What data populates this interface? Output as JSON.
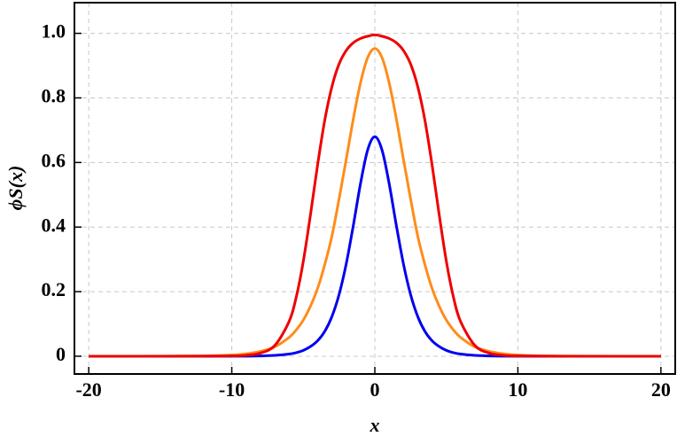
{
  "chart_data": {
    "type": "line",
    "x_label": "x",
    "y_label": "ϕS(x)",
    "x": [
      -20,
      -15,
      -12,
      -10,
      -9,
      -8,
      -7,
      -6,
      -5.5,
      -5,
      -4.5,
      -4,
      -3.5,
      -3,
      -2.5,
      -2,
      -1.5,
      -1,
      -0.5,
      0,
      0.5,
      1,
      1.5,
      2,
      2.5,
      3,
      3.5,
      4,
      4.5,
      5,
      5.5,
      6,
      7,
      8,
      9,
      10,
      12,
      15,
      20
    ],
    "series": [
      {
        "color": "#0000ee",
        "values": [
          0,
          0,
          0,
          0.0001,
          0.0003,
          0.0009,
          0.0025,
          0.0067,
          0.011,
          0.018,
          0.03,
          0.048,
          0.077,
          0.123,
          0.191,
          0.286,
          0.406,
          0.535,
          0.639,
          0.68,
          0.639,
          0.535,
          0.406,
          0.286,
          0.191,
          0.123,
          0.077,
          0.048,
          0.03,
          0.018,
          0.011,
          0.0067,
          0.0025,
          0.0009,
          0.0003,
          0.0001,
          0,
          0,
          0
        ]
      },
      {
        "color": "#ff8c1a",
        "values": [
          0,
          0.0001,
          0.0009,
          0.0037,
          0.0074,
          0.015,
          0.029,
          0.058,
          0.081,
          0.112,
          0.155,
          0.21,
          0.284,
          0.372,
          0.487,
          0.61,
          0.736,
          0.847,
          0.925,
          0.953,
          0.925,
          0.847,
          0.736,
          0.61,
          0.487,
          0.372,
          0.284,
          0.21,
          0.155,
          0.112,
          0.081,
          0.058,
          0.029,
          0.015,
          0.0074,
          0.0037,
          0.0009,
          0.0001,
          0
        ]
      },
      {
        "color": "#ee0000",
        "values": [
          0,
          0,
          0.0001,
          0.0008,
          0.0028,
          0.0097,
          0.033,
          0.107,
          0.182,
          0.294,
          0.438,
          0.593,
          0.731,
          0.835,
          0.905,
          0.947,
          0.971,
          0.984,
          0.991,
          0.995,
          0.991,
          0.984,
          0.971,
          0.947,
          0.905,
          0.835,
          0.731,
          0.593,
          0.438,
          0.294,
          0.182,
          0.107,
          0.033,
          0.0097,
          0.0028,
          0.0008,
          0.0001,
          0,
          0
        ]
      }
    ],
    "xlim": [
      -21,
      21
    ],
    "ylim": [
      -0.055,
      1.095
    ],
    "xticks": [
      -20,
      -10,
      0,
      10,
      20
    ],
    "yticks": [
      0,
      0.2,
      0.4,
      0.6,
      0.8,
      {
        "value": 1,
        "label": "1.0"
      }
    ],
    "grid": true
  }
}
